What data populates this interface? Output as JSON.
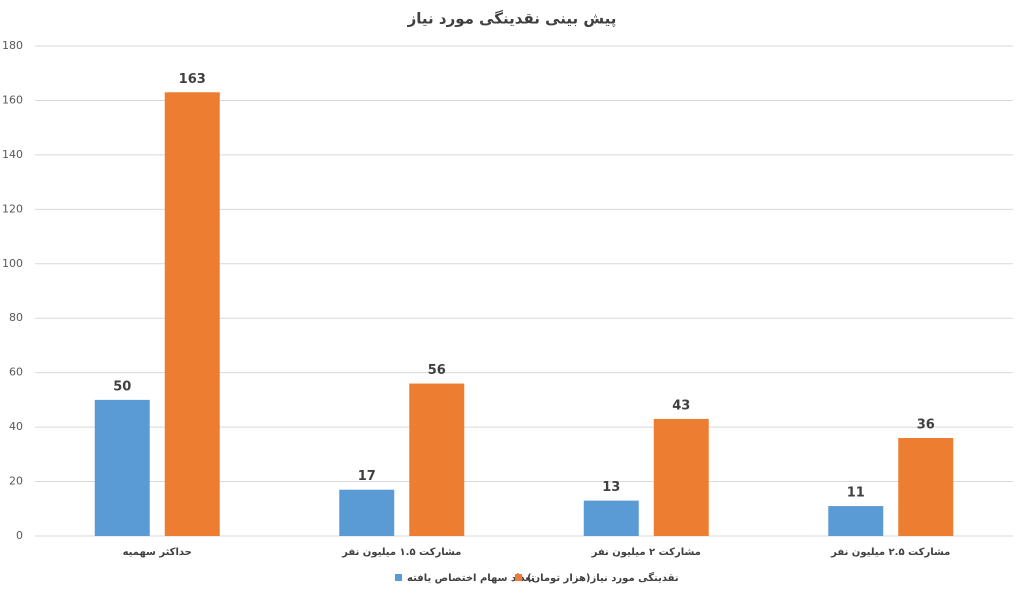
{
  "chart_data": {
    "type": "bar",
    "title": "پیش بینی نقدینگی مورد نیاز",
    "categories": [
      "حداکثر سهمیه",
      "مشارکت ۱.۵ میلیون نفر",
      "مشارکت ۲ میلیون نفر",
      "مشارکت ۲.۵ میلیون نفر"
    ],
    "series": [
      {
        "name": "تعداد سهام اختصاص یافته",
        "color": "#5b9bd5",
        "values": [
          50,
          17,
          13,
          11
        ]
      },
      {
        "name": "نقدینگی مورد نیاز(هزار تومان)",
        "color": "#ed7d31",
        "values": [
          163,
          56,
          43,
          36
        ]
      }
    ],
    "ylim": [
      0,
      180
    ],
    "yticks": [
      0,
      20,
      40,
      60,
      80,
      100,
      120,
      140,
      160,
      180
    ],
    "grid": true,
    "legend": "bottom"
  }
}
